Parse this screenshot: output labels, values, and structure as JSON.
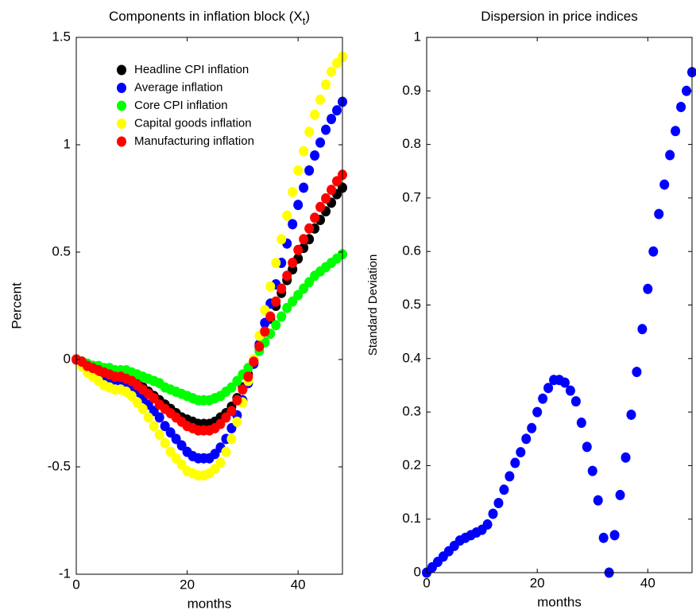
{
  "chart_data": [
    {
      "type": "scatter",
      "title": "Components in inflation block (X",
      "title_subscript": "t",
      "title_end": ")",
      "xlabel": "months",
      "ylabel": "Percent",
      "x": [
        0,
        1,
        2,
        3,
        4,
        5,
        6,
        7,
        8,
        9,
        10,
        11,
        12,
        13,
        14,
        15,
        16,
        17,
        18,
        19,
        20,
        21,
        22,
        23,
        24,
        25,
        26,
        27,
        28,
        29,
        30,
        31,
        32,
        33,
        34,
        35,
        36,
        37,
        38,
        39,
        40,
        41,
        42,
        43,
        44,
        45,
        46,
        47,
        48
      ],
      "xlim": [
        0,
        48
      ],
      "xticks": [
        0,
        20,
        40
      ],
      "ylim": [
        -1,
        1.5
      ],
      "yticks": [
        -1,
        -0.5,
        0,
        0.5,
        1,
        1.5
      ],
      "legend": "upper left",
      "series": [
        {
          "name": "Headline CPI inflation",
          "color": "#000000",
          "values": [
            0,
            -0.01,
            -0.02,
            -0.03,
            -0.04,
            -0.05,
            -0.06,
            -0.07,
            -0.07,
            -0.08,
            -0.09,
            -0.11,
            -0.13,
            -0.15,
            -0.17,
            -0.19,
            -0.21,
            -0.23,
            -0.25,
            -0.27,
            -0.28,
            -0.29,
            -0.3,
            -0.3,
            -0.3,
            -0.29,
            -0.27,
            -0.25,
            -0.22,
            -0.18,
            -0.13,
            -0.07,
            -0.01,
            0.06,
            0.13,
            0.19,
            0.25,
            0.31,
            0.37,
            0.42,
            0.47,
            0.52,
            0.56,
            0.61,
            0.65,
            0.69,
            0.73,
            0.77,
            0.8
          ]
        },
        {
          "name": "Average inflation",
          "color": "#0000ff",
          "values": [
            0,
            -0.01,
            -0.03,
            -0.05,
            -0.07,
            -0.08,
            -0.09,
            -0.1,
            -0.1,
            -0.11,
            -0.13,
            -0.15,
            -0.18,
            -0.21,
            -0.24,
            -0.27,
            -0.31,
            -0.34,
            -0.37,
            -0.4,
            -0.43,
            -0.45,
            -0.46,
            -0.46,
            -0.46,
            -0.44,
            -0.41,
            -0.37,
            -0.32,
            -0.26,
            -0.19,
            -0.11,
            -0.02,
            0.07,
            0.17,
            0.26,
            0.35,
            0.45,
            0.54,
            0.63,
            0.72,
            0.8,
            0.88,
            0.95,
            1.01,
            1.07,
            1.12,
            1.16,
            1.2
          ]
        },
        {
          "name": "Core CPI inflation",
          "color": "#00ff00",
          "values": [
            0,
            -0.01,
            -0.02,
            -0.03,
            -0.03,
            -0.04,
            -0.04,
            -0.05,
            -0.05,
            -0.05,
            -0.06,
            -0.07,
            -0.08,
            -0.09,
            -0.1,
            -0.11,
            -0.13,
            -0.14,
            -0.15,
            -0.16,
            -0.17,
            -0.18,
            -0.19,
            -0.19,
            -0.19,
            -0.18,
            -0.17,
            -0.15,
            -0.13,
            -0.1,
            -0.07,
            -0.04,
            0,
            0.04,
            0.08,
            0.12,
            0.16,
            0.2,
            0.24,
            0.27,
            0.3,
            0.33,
            0.36,
            0.39,
            0.41,
            0.43,
            0.45,
            0.47,
            0.49
          ]
        },
        {
          "name": "Capital goods inflation",
          "color": "#ffff00",
          "values": [
            0,
            -0.03,
            -0.06,
            -0.08,
            -0.1,
            -0.12,
            -0.13,
            -0.14,
            -0.14,
            -0.15,
            -0.17,
            -0.2,
            -0.23,
            -0.27,
            -0.31,
            -0.35,
            -0.39,
            -0.43,
            -0.46,
            -0.49,
            -0.52,
            -0.53,
            -0.54,
            -0.54,
            -0.53,
            -0.51,
            -0.48,
            -0.43,
            -0.37,
            -0.29,
            -0.2,
            -0.1,
            0,
            0.11,
            0.23,
            0.34,
            0.45,
            0.56,
            0.67,
            0.78,
            0.88,
            0.97,
            1.06,
            1.14,
            1.21,
            1.28,
            1.34,
            1.38,
            1.41
          ]
        },
        {
          "name": "Manufacturing inflation",
          "color": "#ff0000",
          "values": [
            0,
            -0.01,
            -0.03,
            -0.04,
            -0.05,
            -0.06,
            -0.07,
            -0.08,
            -0.08,
            -0.09,
            -0.1,
            -0.12,
            -0.14,
            -0.16,
            -0.18,
            -0.21,
            -0.23,
            -0.25,
            -0.27,
            -0.29,
            -0.31,
            -0.32,
            -0.33,
            -0.33,
            -0.33,
            -0.32,
            -0.3,
            -0.27,
            -0.24,
            -0.19,
            -0.14,
            -0.08,
            -0.01,
            0.06,
            0.13,
            0.2,
            0.27,
            0.33,
            0.39,
            0.45,
            0.51,
            0.56,
            0.61,
            0.66,
            0.71,
            0.75,
            0.79,
            0.83,
            0.86
          ]
        }
      ]
    },
    {
      "type": "scatter",
      "title": "Dispersion in price indices",
      "xlabel": "months",
      "ylabel": "Standard Deviation",
      "x": [
        0,
        1,
        2,
        3,
        4,
        5,
        6,
        7,
        8,
        9,
        10,
        11,
        12,
        13,
        14,
        15,
        16,
        17,
        18,
        19,
        20,
        21,
        22,
        23,
        24,
        25,
        26,
        27,
        28,
        29,
        30,
        31,
        32,
        33,
        34,
        35,
        36,
        37,
        38,
        39,
        40,
        41,
        42,
        43,
        44,
        45,
        46,
        47,
        48
      ],
      "xlim": [
        0,
        48
      ],
      "xticks": [
        0,
        20,
        40
      ],
      "ylim": [
        0,
        1
      ],
      "yticks": [
        0,
        0.1,
        0.2,
        0.3,
        0.4,
        0.5,
        0.6,
        0.7,
        0.8,
        0.9,
        1
      ],
      "color": "#0000ff",
      "values": [
        0,
        0.01,
        0.02,
        0.03,
        0.04,
        0.05,
        0.06,
        0.065,
        0.07,
        0.075,
        0.08,
        0.09,
        0.11,
        0.13,
        0.155,
        0.18,
        0.205,
        0.225,
        0.25,
        0.27,
        0.3,
        0.325,
        0.345,
        0.36,
        0.36,
        0.355,
        0.34,
        0.32,
        0.28,
        0.235,
        0.19,
        0.135,
        0.065,
        0,
        0.07,
        0.145,
        0.215,
        0.295,
        0.375,
        0.455,
        0.53,
        0.6,
        0.67,
        0.725,
        0.78,
        0.825,
        0.87,
        0.9,
        0.935
      ]
    }
  ]
}
